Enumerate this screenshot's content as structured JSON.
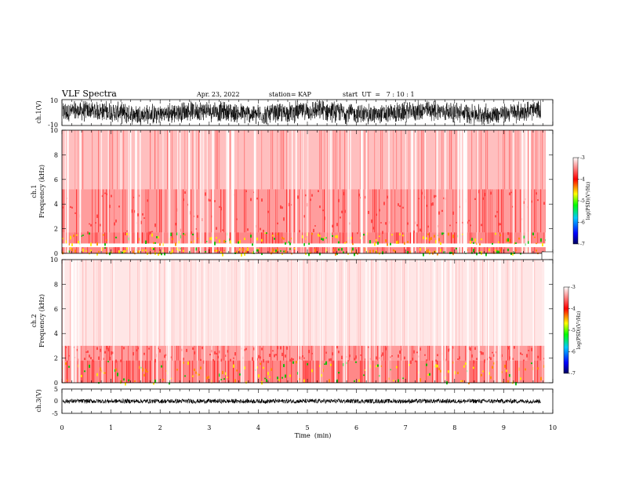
{
  "header": {
    "title": "VLF Spectra",
    "date": "Apr. 23, 2022",
    "station": "station= KAP",
    "start": "start  UT  =   7 : 10 : 1"
  },
  "chart_data": [
    {
      "type": "line",
      "ylabel": "ch.1(V)",
      "ylim": [
        -10,
        10
      ],
      "yticks": [
        10,
        -10
      ],
      "xlim": [
        0,
        10
      ],
      "series_description": "noisy waveform spanning most of range, mean near 0"
    },
    {
      "type": "heatmap",
      "ylabel_line1": "ch.1",
      "ylabel_line2": "Frequency (kHz)",
      "ylim": [
        0,
        10
      ],
      "yticks": [
        0,
        2,
        4,
        6,
        8,
        10
      ],
      "xlim": [
        0,
        9.85
      ],
      "colorbar": {
        "label": "log(PSD)(V²/Hz)",
        "range": [
          -7,
          -3
        ],
        "ticks": [
          -3,
          -4,
          -5,
          -6,
          -7
        ],
        "colors": [
          "#000080",
          "#0000ff",
          "#00ff00",
          "#ffff00",
          "#ff0000",
          "#ffffff"
        ]
      },
      "bands": [
        {
          "f_low": 0.0,
          "f_high": 0.5,
          "level": "high"
        },
        {
          "f_low": 0.8,
          "f_high": 1.7,
          "level": "high"
        },
        {
          "f_low": 1.7,
          "f_high": 5.2,
          "level": "medium"
        },
        {
          "f_low": 5.2,
          "f_high": 10.0,
          "level": "low"
        }
      ]
    },
    {
      "type": "heatmap",
      "ylabel_line1": "ch.2",
      "ylabel_line2": "Frequency (kHz)",
      "ylim": [
        0,
        10
      ],
      "yticks": [
        0,
        2,
        4,
        6,
        8,
        10
      ],
      "xlim": [
        0,
        9.85
      ],
      "colorbar": {
        "label": "log(PSD)(V²/Hz)",
        "range": [
          -7,
          -3
        ],
        "ticks": [
          -3,
          -4,
          -5,
          -6,
          -7
        ],
        "colors": [
          "#000080",
          "#0000ff",
          "#00ff00",
          "#ffff00",
          "#ff0000",
          "#ffffff"
        ]
      },
      "bands": [
        {
          "f_low": 0.0,
          "f_high": 1.8,
          "level": "high"
        },
        {
          "f_low": 1.8,
          "f_high": 3.0,
          "level": "medium"
        },
        {
          "f_low": 3.0,
          "f_high": 10.0,
          "level": "sparse"
        }
      ]
    },
    {
      "type": "line",
      "ylabel": "ch.3(V)",
      "ylim": [
        -5,
        5
      ],
      "yticks": [
        5,
        0,
        -5
      ],
      "xlim": [
        0,
        10
      ],
      "xlabel": "Time  (min)",
      "xticks": [
        0,
        1,
        2,
        3,
        4,
        5,
        6,
        7,
        8,
        9,
        10
      ],
      "series_description": "flat noisy trace near 0"
    }
  ]
}
